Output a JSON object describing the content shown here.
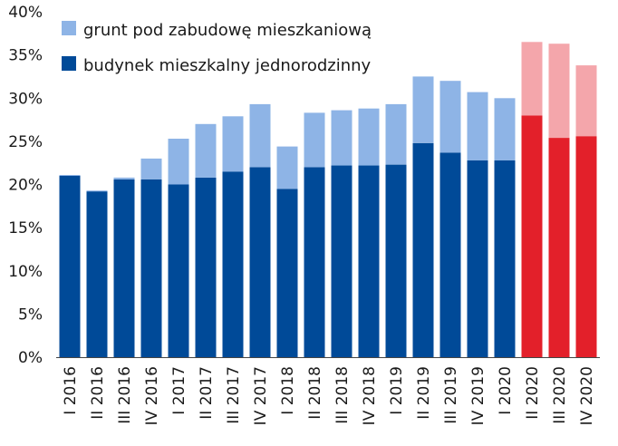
{
  "chart_data": {
    "type": "bar",
    "stacked": true,
    "categories": [
      "I 2016",
      "II 2016",
      "III 2016",
      "IV 2016",
      "I 2017",
      "II 2017",
      "III 2017",
      "IV 2017",
      "I 2018",
      "II 2018",
      "III 2018",
      "IV 2018",
      "I 2019",
      "II 2019",
      "III 2019",
      "IV 2019",
      "I 2020",
      "II 2020",
      "III 2020",
      "IV 2020"
    ],
    "series": [
      {
        "name": "budynek mieszkalny jednorodzinny",
        "values": [
          21.0,
          19.2,
          20.6,
          20.6,
          20.0,
          20.8,
          21.5,
          22.0,
          19.5,
          22.0,
          22.2,
          22.2,
          22.3,
          24.8,
          23.7,
          22.8,
          22.8,
          28.0,
          25.4,
          25.6
        ],
        "color": "#004a98",
        "highlight_color": "#e3202a"
      },
      {
        "name": "grunt pod zabudowę mieszkaniową",
        "values": [
          0.1,
          0.1,
          0.2,
          2.4,
          5.3,
          6.2,
          6.4,
          7.3,
          4.9,
          6.3,
          6.4,
          6.6,
          7.0,
          7.7,
          8.3,
          7.9,
          7.2,
          8.5,
          10.9,
          8.2
        ],
        "color": "#8eb4e6",
        "highlight_color": "#f4a6ab"
      }
    ],
    "highlight_categories": [
      "II 2020",
      "III 2020",
      "IV 2020"
    ],
    "y_ticks": [
      "0%",
      "5%",
      "10%",
      "15%",
      "20%",
      "25%",
      "30%",
      "35%",
      "40%"
    ],
    "ylim": [
      0,
      40
    ],
    "grid": false,
    "legend_position": "top-left",
    "title": "",
    "xlabel": "",
    "ylabel": ""
  }
}
